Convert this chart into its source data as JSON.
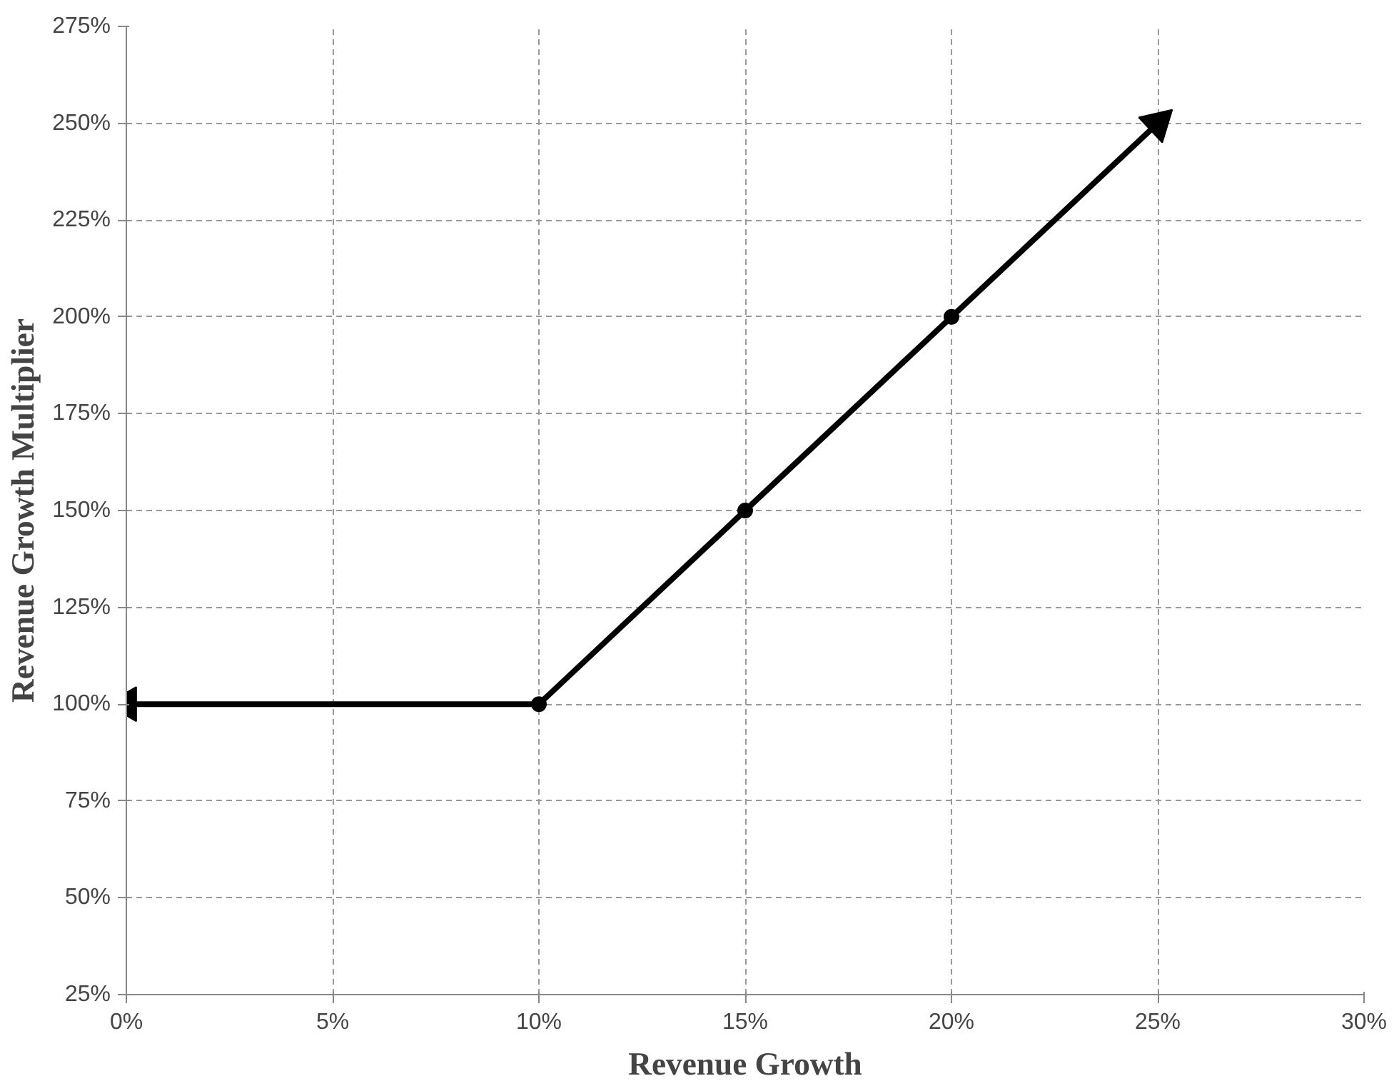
{
  "chart_data": {
    "type": "line",
    "xlabel": "Revenue Growth",
    "ylabel": "Revenue Growth Multiplier",
    "xlim": [
      0,
      30
    ],
    "ylim": [
      25,
      275
    ],
    "xticks": [
      {
        "value": 0,
        "label": "0%"
      },
      {
        "value": 5,
        "label": "5%"
      },
      {
        "value": 10,
        "label": "10%"
      },
      {
        "value": 15,
        "label": "15%"
      },
      {
        "value": 20,
        "label": "20%"
      },
      {
        "value": 25,
        "label": "25%"
      },
      {
        "value": 30,
        "label": "30%"
      }
    ],
    "yticks": [
      {
        "value": 25,
        "label": "25%"
      },
      {
        "value": 50,
        "label": "50%"
      },
      {
        "value": 75,
        "label": "75%"
      },
      {
        "value": 100,
        "label": "100%"
      },
      {
        "value": 125,
        "label": "125%"
      },
      {
        "value": 150,
        "label": "150%"
      },
      {
        "value": 175,
        "label": "175%"
      },
      {
        "value": 200,
        "label": "200%"
      },
      {
        "value": 225,
        "label": "225%"
      },
      {
        "value": 250,
        "label": "250%"
      },
      {
        "value": 275,
        "label": "275%"
      }
    ],
    "grid": true,
    "series": [
      {
        "color": "#000000",
        "x": [
          0,
          10,
          15,
          20,
          25
        ],
        "values": [
          100,
          100,
          150,
          200,
          250
        ],
        "marker": "none",
        "line_style": "solid"
      },
      {
        "type": "scatter",
        "color": "#000000",
        "x": [
          10,
          15,
          20
        ],
        "values": [
          100,
          150,
          200
        ],
        "marker": "circle"
      }
    ]
  }
}
